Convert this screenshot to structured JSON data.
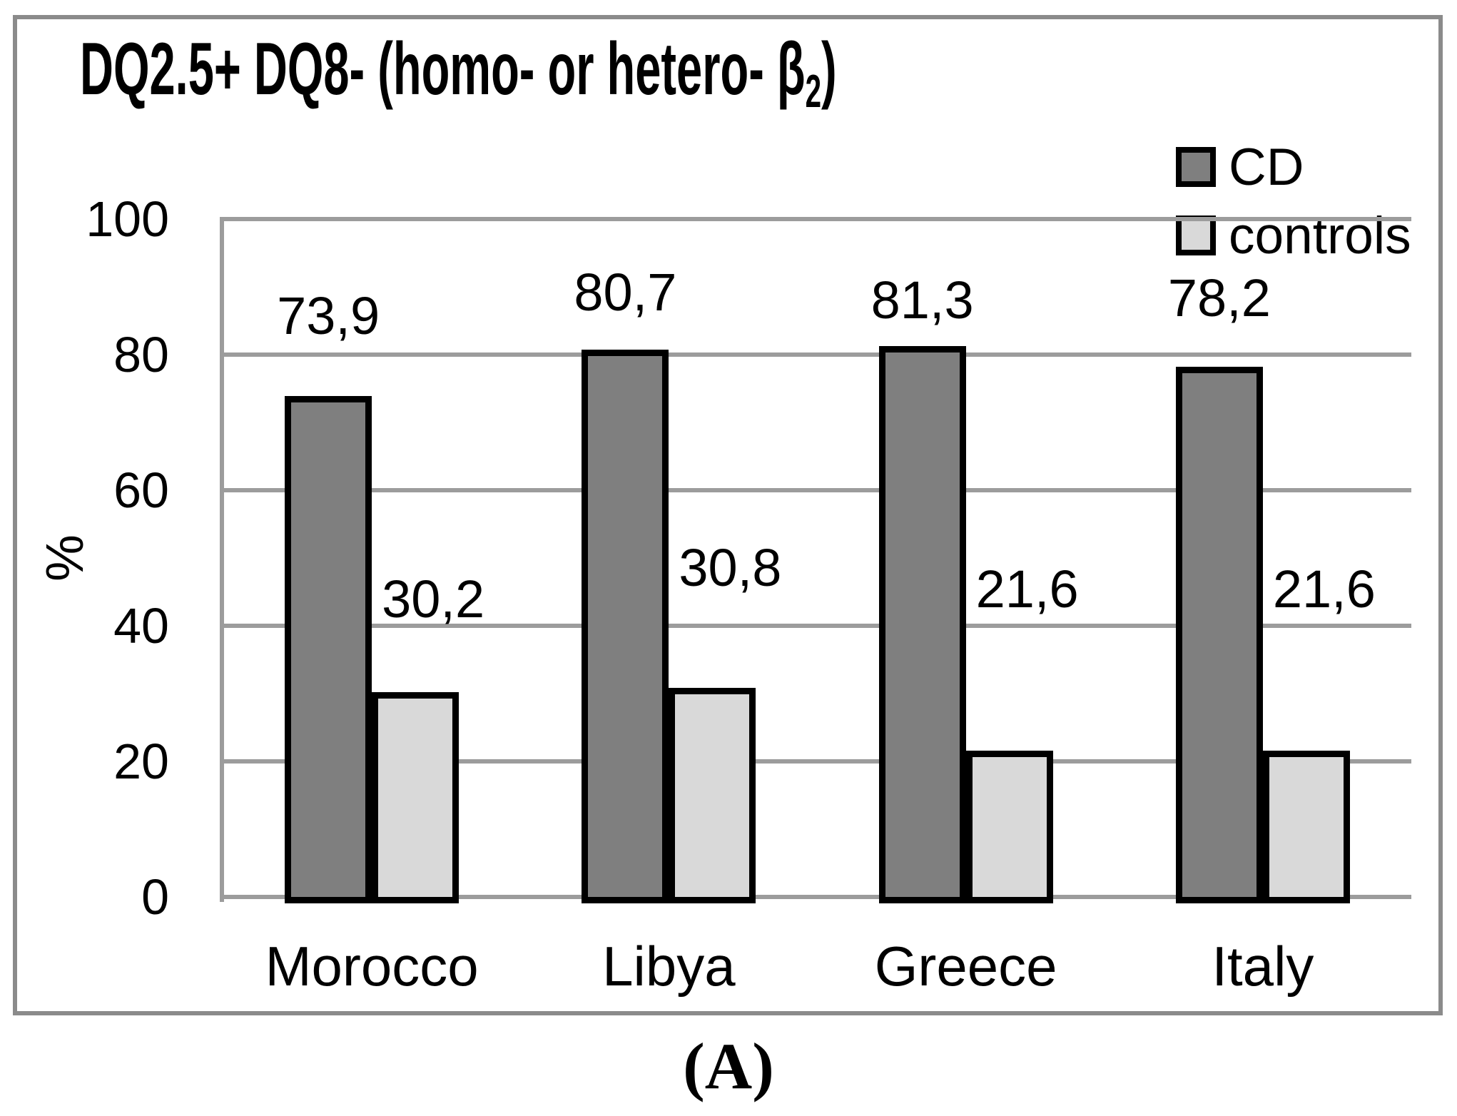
{
  "figure": {
    "caption": "(A)"
  },
  "chart_data": {
    "type": "bar",
    "title": {
      "text_before_sub": "DQ2.5+ DQ8- (homo- or hetero- β",
      "subscript": "2",
      "text_after_sub": ")",
      "full_text": "DQ2.5+ DQ8- (homo- or hetero- β2)"
    },
    "ylabel": "%",
    "ylim": [
      0,
      100
    ],
    "yticks": [
      0,
      20,
      40,
      60,
      80,
      100
    ],
    "grid": "horizontal",
    "legend_position": "top-right",
    "categories": [
      "Morocco",
      "Libya",
      "Greece",
      "Italy"
    ],
    "series": [
      {
        "name": "CD",
        "color": "#7f7f7f",
        "values": [
          73.9,
          80.7,
          81.3,
          78.2
        ],
        "labels": [
          "73,9",
          "80,7",
          "81,3",
          "78,2"
        ]
      },
      {
        "name": "controls",
        "color": "#d9d9d9",
        "values": [
          30.2,
          30.8,
          21.6,
          21.6
        ],
        "labels": [
          "30,2",
          "30,8",
          "21,6",
          "21,6"
        ]
      }
    ],
    "bar_border_color": "#000000",
    "gridline_color": "#9c9c9c",
    "axis_color": "#9c9c9c",
    "frame_color": "#8b8b8b"
  }
}
